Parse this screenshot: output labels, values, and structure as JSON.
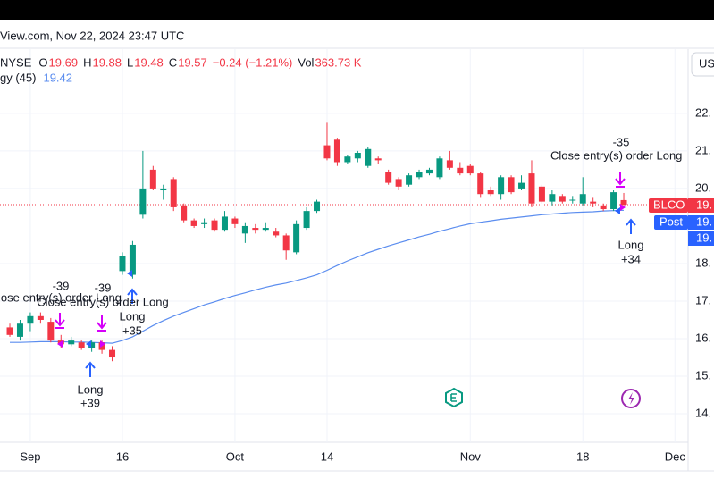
{
  "header": {
    "source": "View.com, Nov 22, 2024 23:47 UTC",
    "button": "US"
  },
  "chart_data": {
    "type": "candlestick",
    "exchange": "NYSE",
    "ohlc_labels": [
      "O",
      "H",
      "L",
      "C"
    ],
    "change_label": "−0.24 (−1.21%)",
    "volume_label": "Vol",
    "volume": "363.73 K",
    "categories": [
      null,
      null,
      "Sep",
      null,
      null,
      null,
      null,
      null,
      null,
      null,
      null,
      "16",
      null,
      null,
      null,
      null,
      null,
      null,
      null,
      null,
      null,
      null,
      "Oct",
      null,
      null,
      null,
      null,
      null,
      null,
      null,
      null,
      "14",
      null,
      null,
      null,
      null,
      null,
      null,
      null,
      null,
      null,
      null,
      null,
      null,
      null,
      "Nov",
      null,
      null,
      null,
      null,
      null,
      null,
      null,
      null,
      null,
      null,
      "18",
      null,
      null,
      null,
      null,
      null,
      null,
      null,
      null,
      "Dec"
    ],
    "open": [
      16.3,
      16.05,
      16.4,
      16.6,
      16.45,
      15.95,
      15.85,
      15.9,
      15.75,
      15.9,
      15.7,
      17.8,
      17.7,
      19.3,
      20.5,
      19.95,
      20.25,
      19.55,
      19.15,
      19.05,
      19.15,
      18.9,
      19.2,
      18.8,
      18.95,
      18.9,
      18.85,
      18.75,
      18.3,
      18.95,
      19.4,
      21.15,
      21.3,
      20.7,
      20.8,
      20.6,
      20.8,
      20.45,
      20.25,
      20.1,
      20.3,
      20.4,
      20.3,
      20.75,
      20.55,
      20.6,
      20.4,
      19.95,
      19.85,
      20.3,
      20.0,
      20.4,
      20.05,
      19.65,
      19.8,
      19.7,
      19.6,
      19.65,
      19.55,
      19.45,
      19.69,
      null,
      null,
      null,
      null,
      null
    ],
    "high": [
      16.4,
      16.5,
      16.7,
      16.7,
      16.55,
      16.1,
      16.05,
      15.95,
      15.95,
      15.95,
      15.8,
      18.3,
      18.6,
      21.0,
      20.6,
      20.1,
      20.3,
      19.6,
      19.2,
      19.2,
      19.2,
      19.4,
      19.25,
      19.1,
      19.05,
      19.1,
      18.95,
      18.8,
      19.15,
      19.5,
      19.7,
      21.75,
      21.35,
      20.9,
      21.0,
      21.1,
      20.85,
      20.5,
      20.3,
      20.4,
      20.5,
      20.55,
      20.85,
      21.0,
      20.7,
      20.65,
      20.45,
      20.05,
      20.35,
      20.35,
      20.35,
      20.75,
      20.1,
      19.95,
      19.85,
      19.8,
      20.3,
      19.75,
      19.6,
      19.95,
      19.88,
      null,
      null,
      null,
      null,
      null
    ],
    "low": [
      16.05,
      15.95,
      16.2,
      16.4,
      15.9,
      15.75,
      15.8,
      15.7,
      15.65,
      15.6,
      15.4,
      17.7,
      17.6,
      19.2,
      19.95,
      19.7,
      19.4,
      19.1,
      18.95,
      18.95,
      18.85,
      18.85,
      18.95,
      18.55,
      18.8,
      18.85,
      18.7,
      18.1,
      18.25,
      18.9,
      19.35,
      20.75,
      20.6,
      20.65,
      20.7,
      20.55,
      20.65,
      20.1,
      19.95,
      20.05,
      20.25,
      20.35,
      20.25,
      20.5,
      20.35,
      20.35,
      19.75,
      19.8,
      19.7,
      19.85,
      19.95,
      19.5,
      19.6,
      19.55,
      19.6,
      19.6,
      19.55,
      19.5,
      19.4,
      19.4,
      19.48,
      null,
      null,
      null,
      null,
      null
    ],
    "close": [
      16.1,
      16.4,
      16.6,
      16.5,
      15.95,
      15.85,
      15.95,
      15.75,
      15.9,
      15.7,
      15.5,
      18.2,
      18.5,
      20.0,
      20.0,
      20.0,
      19.5,
      19.15,
      19.0,
      19.1,
      18.9,
      19.25,
      19.05,
      19.0,
      18.9,
      18.95,
      18.75,
      18.35,
      19.05,
      19.4,
      19.65,
      20.8,
      20.7,
      20.85,
      20.95,
      21.05,
      20.75,
      20.15,
      20.05,
      20.35,
      20.45,
      20.5,
      20.8,
      20.55,
      20.4,
      20.4,
      19.85,
      19.85,
      20.3,
      19.9,
      20.15,
      19.6,
      19.65,
      19.85,
      19.65,
      19.7,
      19.85,
      19.6,
      19.45,
      19.9,
      19.57,
      null,
      null,
      null,
      null,
      null
    ],
    "up_color": "#089981",
    "down_color": "#f23645",
    "series": [
      {
        "name": "gy (45)",
        "color": "#5b8def",
        "values": [
          15.9,
          15.9,
          15.91,
          15.92,
          15.92,
          15.92,
          15.91,
          15.91,
          15.9,
          15.89,
          15.88,
          15.95,
          16.05,
          16.2,
          16.35,
          16.48,
          16.6,
          16.7,
          16.8,
          16.9,
          16.98,
          17.07,
          17.15,
          17.22,
          17.3,
          17.37,
          17.43,
          17.48,
          17.55,
          17.62,
          17.7,
          17.82,
          17.95,
          18.07,
          18.18,
          18.29,
          18.38,
          18.47,
          18.55,
          18.63,
          18.71,
          18.78,
          18.86,
          18.93,
          19.0,
          19.06,
          19.1,
          19.14,
          19.18,
          19.21,
          19.24,
          19.27,
          19.3,
          19.32,
          19.34,
          19.36,
          19.37,
          19.38,
          19.4,
          19.41,
          19.42,
          null,
          null,
          null,
          null,
          null
        ]
      }
    ],
    "ylim": [
      13.24,
      23.71
    ],
    "yticks": [
      {
        "value": 22,
        "label": "22."
      },
      {
        "value": 21,
        "label": "21."
      },
      {
        "value": 20,
        "label": "20."
      },
      {
        "value": 18,
        "label": "18."
      },
      {
        "value": 17,
        "label": "17."
      },
      {
        "value": 16,
        "label": "16."
      },
      {
        "value": 15,
        "label": "15."
      },
      {
        "value": 14,
        "label": "14."
      }
    ],
    "grid": true,
    "annotations": [
      "-39",
      "-39",
      "lose entry(s) order Long",
      "Close entry(s) order Long",
      "Long",
      "+35",
      "Long",
      "+39",
      "-35",
      "Close entry(s) order Long",
      "Long",
      "+34"
    ],
    "price_tags": {
      "symbol": "BLCO",
      "price": "19.",
      "session": "Post",
      "post_price": "19.",
      "extra": "19."
    }
  }
}
